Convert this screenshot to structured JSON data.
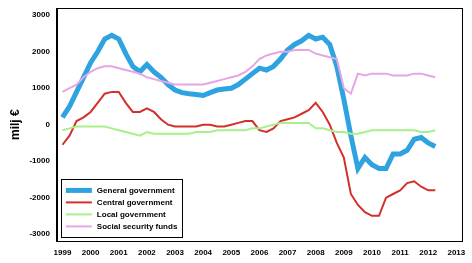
{
  "chart_data": {
    "type": "line",
    "y_label": "milj €",
    "x": [
      1999,
      1999.25,
      1999.5,
      1999.75,
      2000,
      2000.25,
      2000.5,
      2000.75,
      2001,
      2001.25,
      2001.5,
      2001.75,
      2002,
      2002.25,
      2002.5,
      2002.75,
      2003,
      2003.25,
      2003.5,
      2003.75,
      2004,
      2004.25,
      2004.5,
      2004.75,
      2005,
      2005.25,
      2005.5,
      2005.75,
      2006,
      2006.25,
      2006.5,
      2006.75,
      2007,
      2007.25,
      2007.5,
      2007.75,
      2008,
      2008.25,
      2008.5,
      2008.75,
      2009,
      2009.25,
      2009.5,
      2009.75,
      2010,
      2010.25,
      2010.5,
      2010.75,
      2011,
      2011.25,
      2011.5,
      2011.75,
      2012,
      2012.25
    ],
    "series": [
      {
        "name": "General government",
        "color": "#2ea3e0",
        "values": [
          200,
          500,
          900,
          1300,
          1700,
          2000,
          2350,
          2450,
          2350,
          1950,
          1600,
          1450,
          1650,
          1450,
          1300,
          1100,
          950,
          880,
          850,
          830,
          800,
          880,
          950,
          980,
          1000,
          1100,
          1250,
          1400,
          1550,
          1500,
          1600,
          1800,
          2050,
          2200,
          2300,
          2450,
          2350,
          2400,
          2200,
          1600,
          700,
          -300,
          -1200,
          -900,
          -1100,
          -1200,
          -1200,
          -800,
          -800,
          -700,
          -400,
          -350,
          -500,
          -600
        ]
      },
      {
        "name": "Central government",
        "color": "#d2302b",
        "values": [
          -550,
          -300,
          100,
          200,
          350,
          600,
          850,
          900,
          900,
          600,
          350,
          350,
          450,
          350,
          150,
          0,
          -50,
          -50,
          -50,
          -50,
          0,
          0,
          -50,
          -50,
          0,
          50,
          100,
          100,
          -150,
          -200,
          -100,
          100,
          150,
          200,
          300,
          400,
          600,
          350,
          0,
          -500,
          -900,
          -1900,
          -2200,
          -2400,
          -2500,
          -2500,
          -2000,
          -1900,
          -1800,
          -1600,
          -1550,
          -1700,
          -1800,
          -1800
        ]
      },
      {
        "name": "Local government",
        "color": "#a8f08a",
        "values": [
          -150,
          -100,
          -50,
          -50,
          -50,
          -50,
          -50,
          -100,
          -150,
          -200,
          -250,
          -300,
          -200,
          -250,
          -250,
          -250,
          -250,
          -250,
          -250,
          -200,
          -200,
          -200,
          -150,
          -150,
          -150,
          -150,
          -150,
          -100,
          -100,
          -50,
          0,
          50,
          50,
          50,
          50,
          50,
          -100,
          -100,
          -150,
          -200,
          -200,
          -250,
          -250,
          -200,
          -150,
          -150,
          -150,
          -150,
          -150,
          -150,
          -150,
          -200,
          -200,
          -150
        ]
      },
      {
        "name": "Social security funds",
        "color": "#e6a6e6",
        "values": [
          900,
          1000,
          1100,
          1300,
          1450,
          1550,
          1600,
          1600,
          1550,
          1500,
          1450,
          1400,
          1300,
          1250,
          1200,
          1150,
          1100,
          1100,
          1100,
          1100,
          1100,
          1150,
          1200,
          1250,
          1300,
          1350,
          1450,
          1600,
          1800,
          1900,
          1950,
          2000,
          2000,
          2050,
          2050,
          2050,
          1950,
          1900,
          1850,
          1800,
          1000,
          850,
          1400,
          1350,
          1400,
          1400,
          1400,
          1350,
          1350,
          1350,
          1400,
          1400,
          1350,
          1300
        ]
      }
    ],
    "xlim": [
      1998.8,
      2013.2
    ],
    "xticks": [
      1999,
      2000,
      2001,
      2002,
      2003,
      2004,
      2005,
      2006,
      2007,
      2008,
      2009,
      2010,
      2011,
      2012,
      2013
    ],
    "ylim": [
      -3200,
      3200
    ],
    "yticks": [
      -3000,
      -2000,
      -1000,
      0,
      1000,
      2000,
      3000
    ],
    "grid": false,
    "legend": "lower left"
  }
}
